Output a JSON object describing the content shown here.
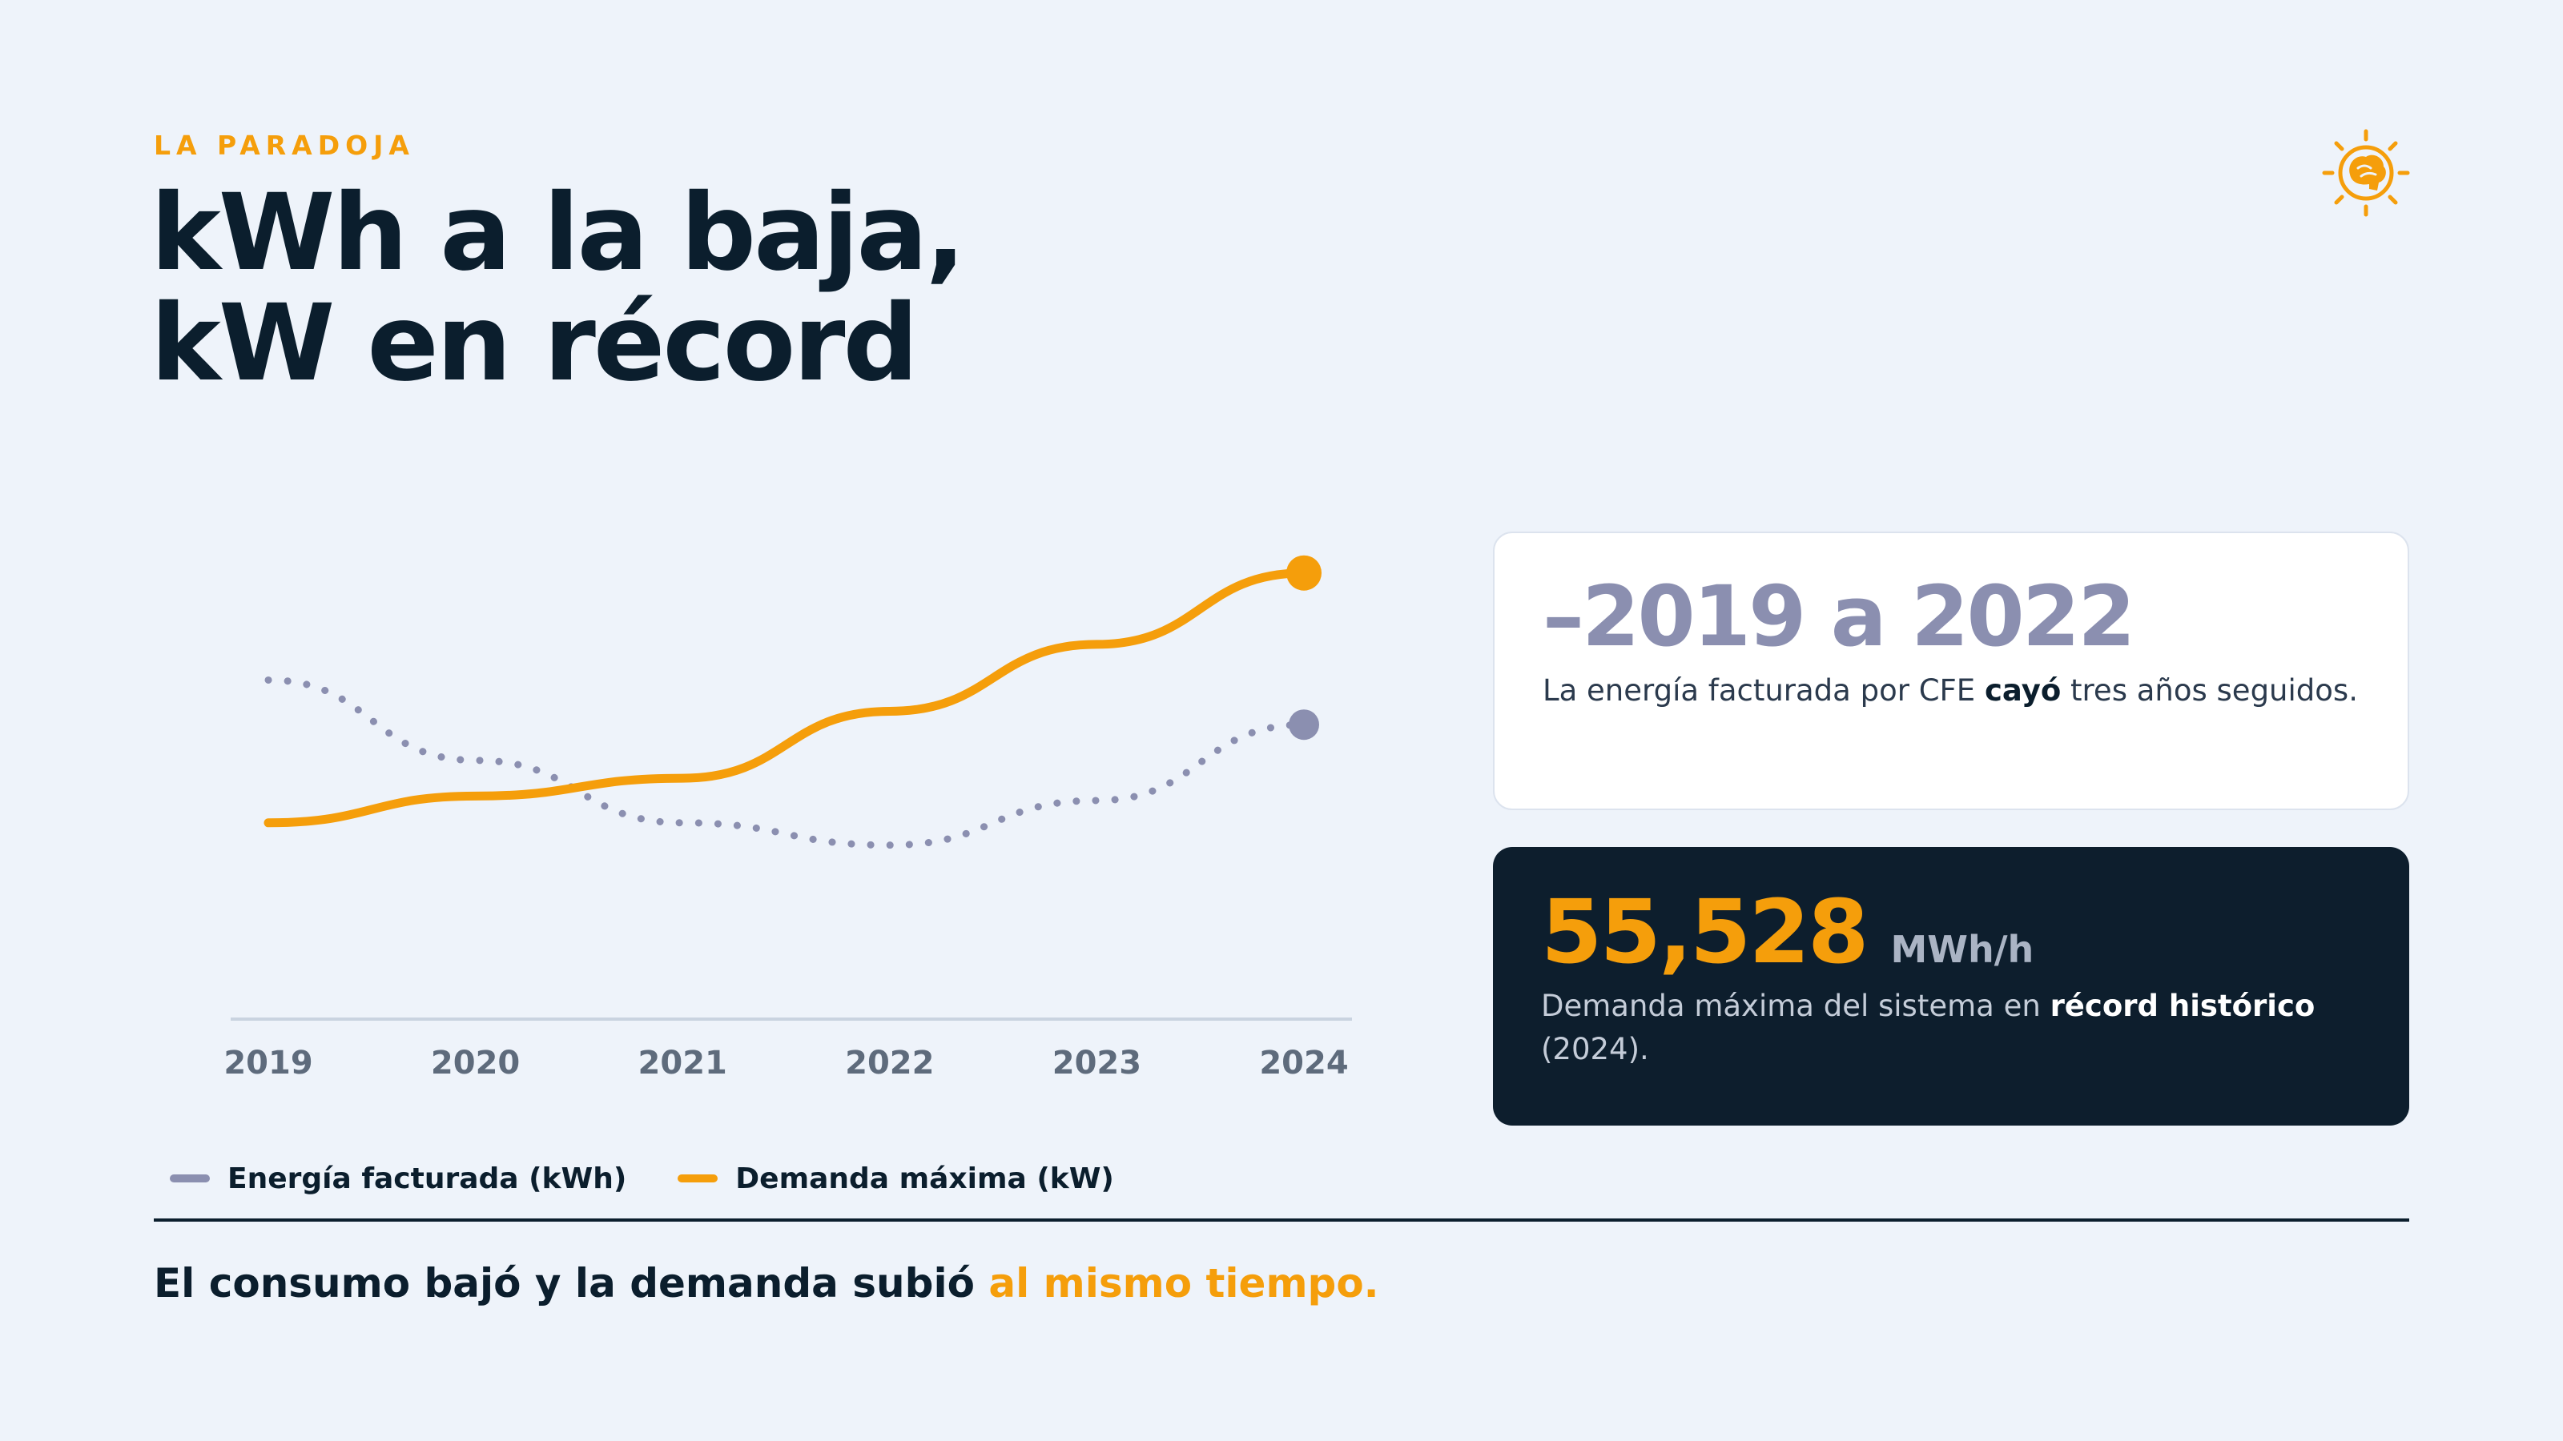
{
  "header": {
    "eyebrow": "LA PARADOJA",
    "title_line1": "kWh a la baja,",
    "title_line2": "kW en récord"
  },
  "logo": {
    "icon": "sun-brain-icon",
    "color": "#f59e0b"
  },
  "chart_data": {
    "type": "line",
    "categories": [
      "2019",
      "2020",
      "2021",
      "2022",
      "2023",
      "2024"
    ],
    "series": [
      {
        "name": "Energía facturada (kWh)",
        "style": "dotted",
        "color": "#8b8fb0",
        "values": [
          76,
          58,
          44,
          39,
          49,
          66
        ]
      },
      {
        "name": "Demanda máxima (kW)",
        "style": "solid",
        "color": "#f59e0b",
        "values": [
          44,
          50,
          54,
          69,
          84,
          100
        ]
      }
    ],
    "ylim": [
      0,
      110
    ],
    "y_axis_visible": false,
    "grid": false,
    "legend_placement": "bottom-left",
    "values_estimated": true
  },
  "legend": {
    "items": [
      {
        "label": "Energía facturada (kWh)",
        "color": "#8b8fb0"
      },
      {
        "label": "Demanda máxima (kW)",
        "color": "#f59e0b"
      }
    ]
  },
  "card_light": {
    "big": "–2019 a 2022",
    "desc_pre": "La energía facturada por CFE ",
    "desc_bold": "cayó",
    "desc_post": " tres años seguidos."
  },
  "card_dark": {
    "big": "55,528",
    "unit": "MWh/h",
    "desc_pre": "Demanda máxima del sistema en ",
    "desc_bold": "récord histórico",
    "desc_post": " (2024)."
  },
  "footer": {
    "text": "El consumo bajó y la demanda subió ",
    "accent": "al mismo tiempo."
  }
}
